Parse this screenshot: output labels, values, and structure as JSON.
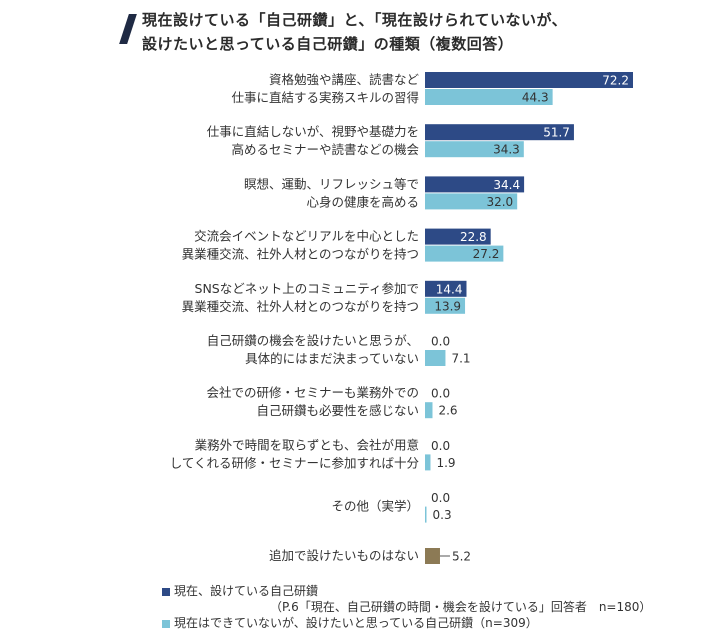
{
  "title": {
    "line1": "現在設けている「自己研鑽」と、「現在設けられていないが、",
    "line2": "設けたいと思っている自己研鑽」の種類（複数回答）"
  },
  "colors": {
    "current": "#2d4a86",
    "desired": "#7cc4d8",
    "other": "#8c7a55"
  },
  "legend": {
    "current_label": "現在、設けている自己研鑽",
    "current_note": "（P.6「現在、自己研鑽の時間・機会を設けている」回答者　n=180）",
    "desired_label": "現在はできていないが、設けたいと思っている自己研鑽（n=309）"
  },
  "chart_data": {
    "type": "bar",
    "orientation": "horizontal",
    "xlim": [
      0,
      80
    ],
    "categories": [
      [
        "資格勉強や講座、読書など",
        "仕事に直結する実務スキルの習得"
      ],
      [
        "仕事に直結しないが、視野や基礎力を",
        "高めるセミナーや読書などの機会"
      ],
      [
        "瞑想、運動、リフレッシュ等で",
        "心身の健康を高める"
      ],
      [
        "交流会イベントなどリアルを中心とした",
        "異業種交流、社外人材とのつながりを持つ"
      ],
      [
        "SNSなどネット上のコミュニティ参加で",
        "異業種交流、社外人材とのつながりを持つ"
      ],
      [
        "自己研鑽の機会を設けたいと思うが、",
        "具体的にはまだ決まっていない"
      ],
      [
        "会社での研修・セミナーも業務外での",
        "自己研鑽も必要性を感じない"
      ],
      [
        "業務外で時間を取らずとも、会社が用意",
        "してくれる研修・セミナーに参加すれば十分"
      ],
      [
        "その他（実学）"
      ]
    ],
    "series": [
      {
        "name": "現在、設けている自己研鑽",
        "values": [
          72.2,
          51.7,
          34.4,
          22.8,
          14.4,
          0.0,
          0.0,
          0.0,
          0.0
        ],
        "labels": [
          "72.2",
          "51.7",
          "34.4",
          "22.8",
          "14.4",
          "0.0",
          "0.0",
          "0.0",
          "0.0"
        ]
      },
      {
        "name": "現在はできていないが、設けたいと思っている自己研鑽",
        "values": [
          44.3,
          34.3,
          32.0,
          27.2,
          13.9,
          7.1,
          2.6,
          1.9,
          0.3
        ],
        "labels": [
          "44.3",
          "34.3",
          "32.0",
          "27.2",
          "13.9",
          "7.1",
          "2.6",
          "1.9",
          "0.3"
        ]
      }
    ],
    "extra": {
      "category": "追加で設けたいものはない",
      "value": 5.2,
      "label": "5.2"
    }
  }
}
